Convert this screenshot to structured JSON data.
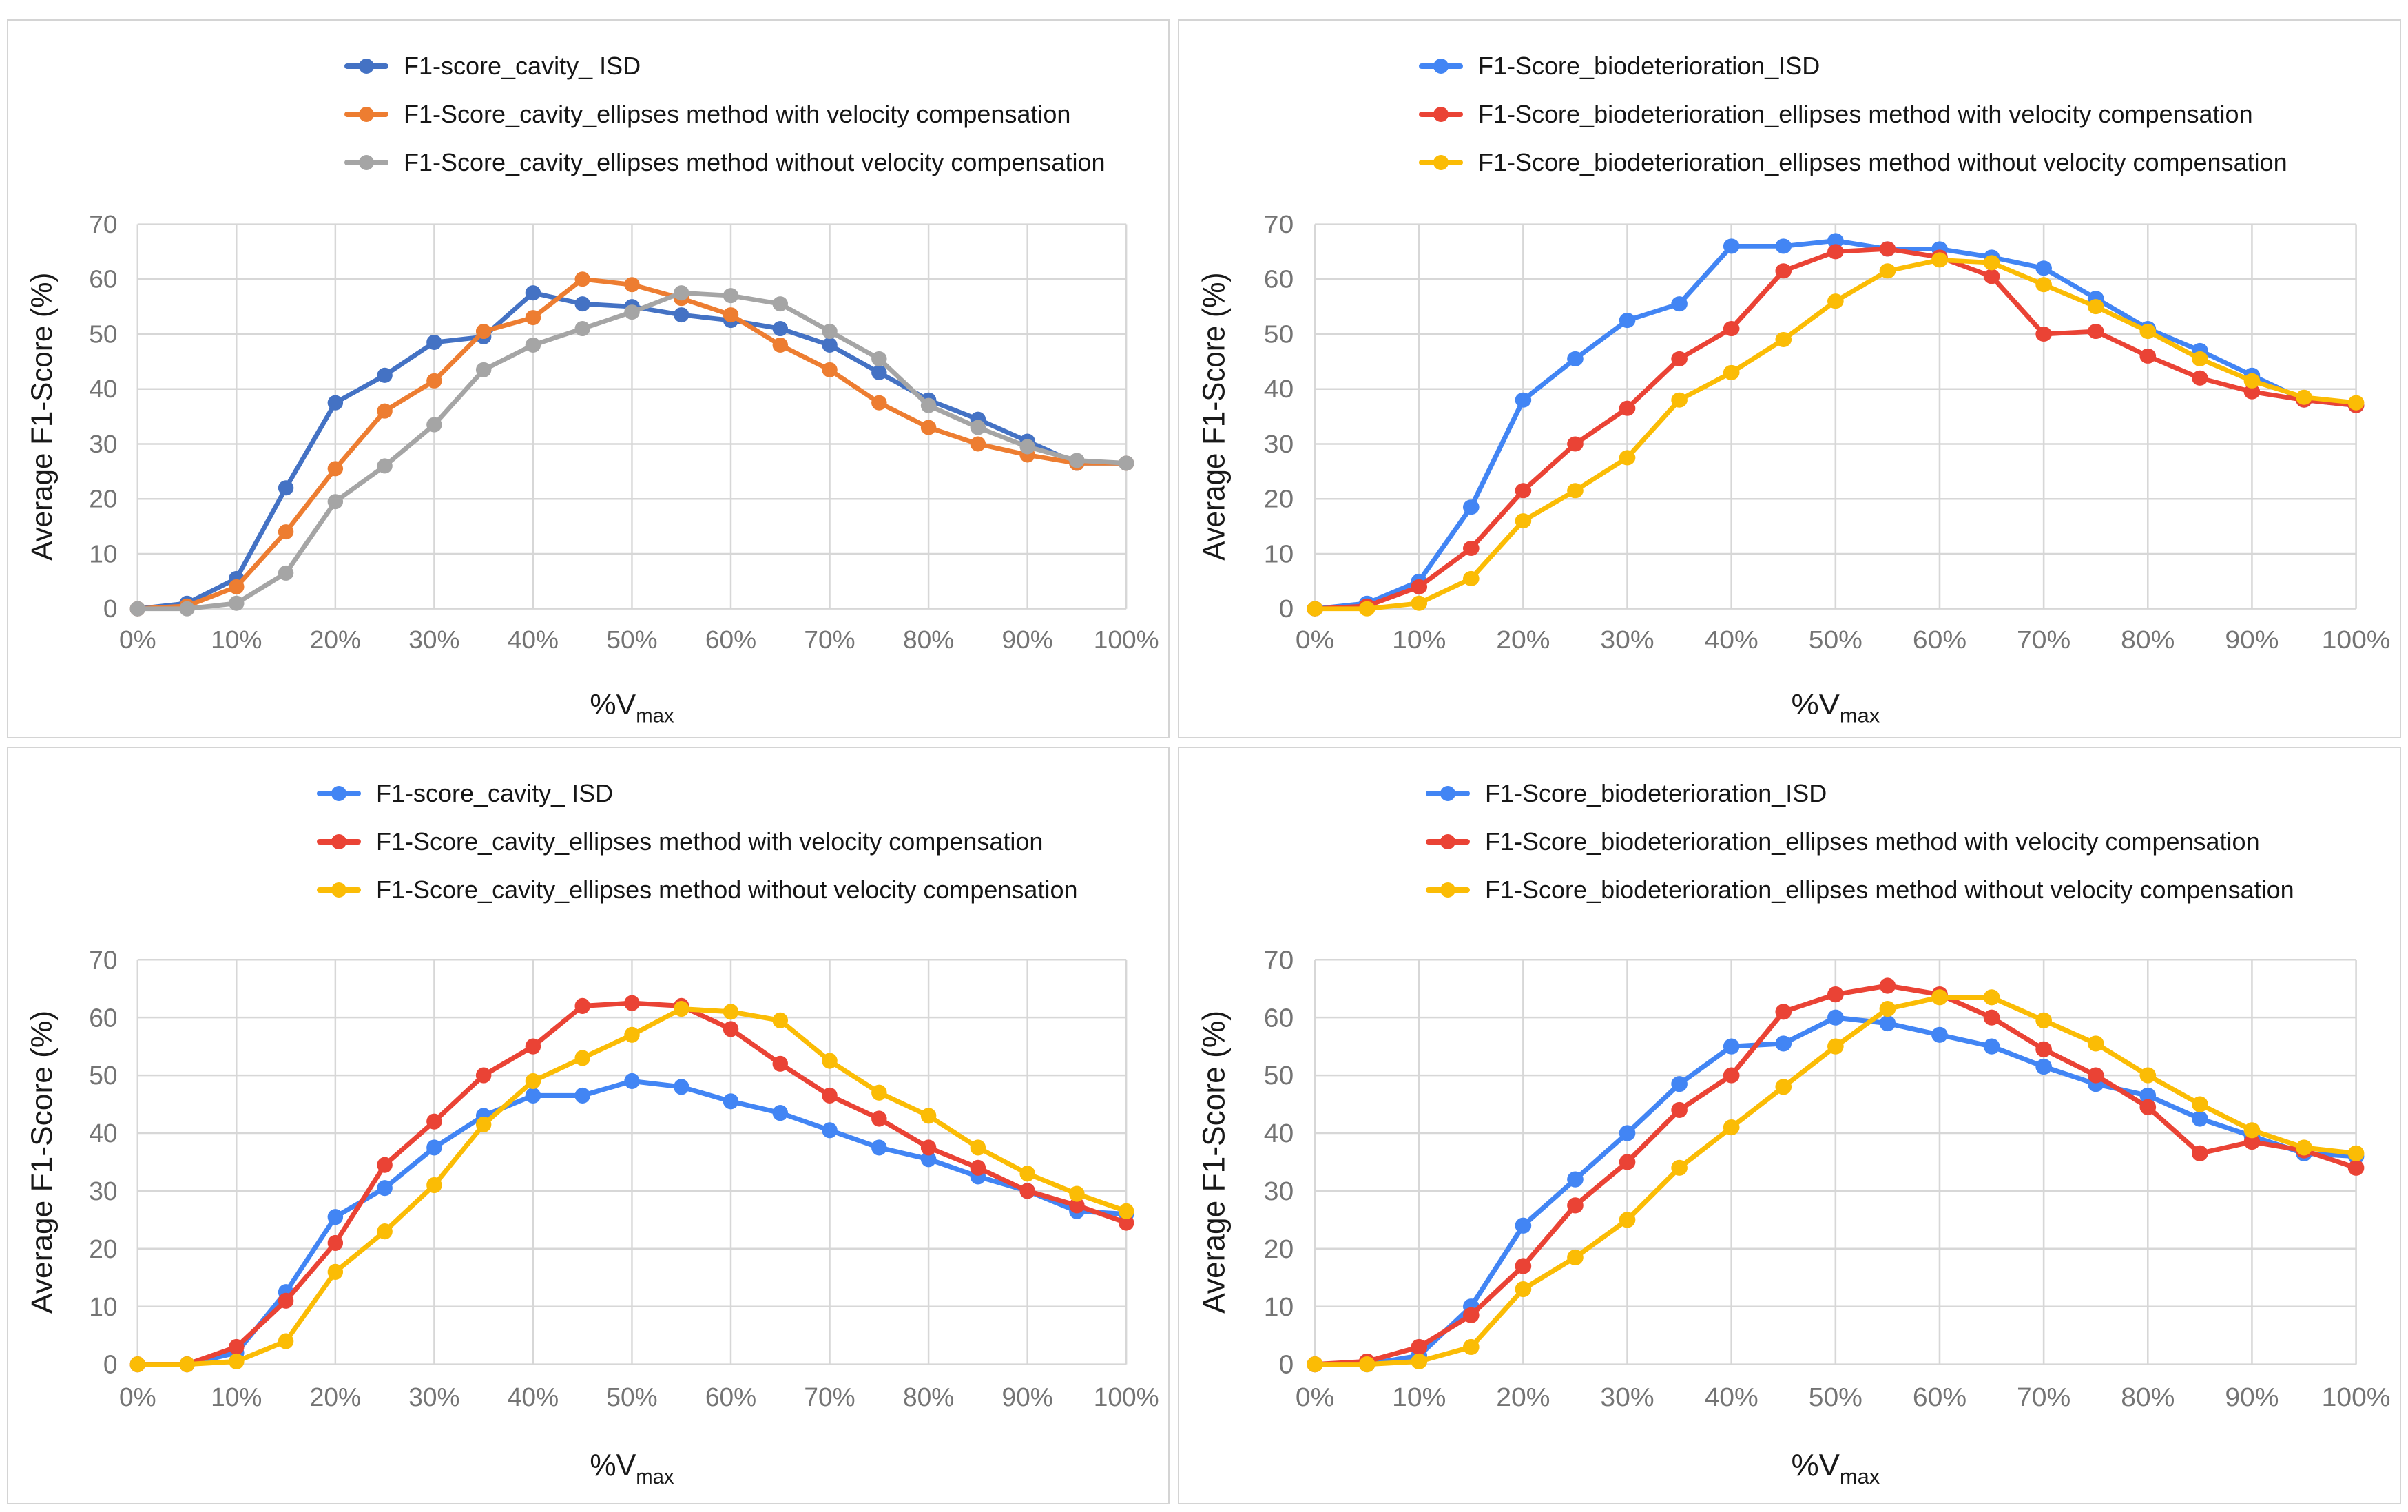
{
  "page": {
    "background": "#ffffff",
    "grid_color": "#d7d7d7",
    "tick_color": "#747474",
    "title_color": "#191919"
  },
  "axis": {
    "y_title": "Average F1-Score (%)",
    "x_title_main": "%V",
    "x_title_sub": "max",
    "x_ticks": [
      "0%",
      "10%",
      "20%",
      "30%",
      "40%",
      "50%",
      "60%",
      "70%",
      "80%",
      "90%",
      "100%"
    ],
    "y_ticks": [
      "0",
      "10",
      "20",
      "30",
      "40",
      "50",
      "60",
      "70"
    ]
  },
  "chart_data": [
    {
      "type": "line",
      "position": "top-left",
      "title": "",
      "xlabel": "%Vmax",
      "ylabel": "Average F1-Score (%)",
      "ylim": [
        0,
        70
      ],
      "grid": true,
      "legend_position": "top",
      "x_percent": [
        0,
        5,
        10,
        15,
        20,
        25,
        30,
        35,
        40,
        45,
        50,
        55,
        60,
        65,
        70,
        75,
        80,
        85,
        90,
        95,
        100
      ],
      "series": [
        {
          "name": "F1-score_cavity_ ISD",
          "color": "#4472C4",
          "values": [
            0,
            1,
            5.5,
            22,
            37.5,
            42.5,
            48.5,
            49.5,
            57.5,
            55.5,
            55,
            53.5,
            52.5,
            51,
            48,
            43,
            38,
            34.5,
            30.5,
            26.5,
            26.5
          ]
        },
        {
          "name": "F1-Score_cavity_ellipses method with velocity compensation",
          "color": "#ED7D31",
          "values": [
            0,
            0.5,
            4,
            14,
            25.5,
            36,
            41.5,
            50.5,
            53,
            60,
            59,
            56.5,
            53.5,
            48,
            43.5,
            37.5,
            33,
            30,
            28,
            26.5,
            26.5
          ]
        },
        {
          "name": "F1-Score_cavity_ellipses method without velocity compensation",
          "color": "#A5A5A5",
          "values": [
            0,
            0,
            1,
            6.5,
            19.5,
            26,
            33.5,
            43.5,
            48,
            51,
            54,
            57.5,
            57,
            55.5,
            50.5,
            45.5,
            37,
            33,
            29.5,
            27,
            26.5
          ]
        }
      ]
    },
    {
      "type": "line",
      "position": "top-right",
      "title": "",
      "xlabel": "%Vmax",
      "ylabel": "Average F1-Score (%)",
      "ylim": [
        0,
        70
      ],
      "grid": true,
      "legend_position": "top",
      "x_percent": [
        0,
        5,
        10,
        15,
        20,
        25,
        30,
        35,
        40,
        45,
        50,
        55,
        60,
        65,
        70,
        75,
        80,
        85,
        90,
        95,
        100
      ],
      "series": [
        {
          "name": "F1-Score_biodeterioration_ISD",
          "color": "#4285F4",
          "values": [
            0,
            1,
            5,
            18.5,
            38,
            45.5,
            52.5,
            55.5,
            66,
            66,
            67,
            65.5,
            65.5,
            64,
            62,
            56.5,
            51,
            47,
            42.5,
            38,
            37
          ]
        },
        {
          "name": "F1-Score_biodeterioration_ellipses method with velocity compensation",
          "color": "#EA4335",
          "values": [
            0,
            0.5,
            4,
            11,
            21.5,
            30,
            36.5,
            45.5,
            51,
            61.5,
            65,
            65.5,
            64,
            60.5,
            50,
            50.5,
            46,
            42,
            39.5,
            38,
            37
          ]
        },
        {
          "name": "F1-Score_biodeterioration_ellipses method without velocity compensation",
          "color": "#FBBC05",
          "values": [
            0,
            0,
            1,
            5.5,
            16,
            21.5,
            27.5,
            38,
            43,
            49,
            56,
            61.5,
            63.5,
            63,
            59,
            55,
            50.5,
            45.5,
            41.5,
            38.5,
            37.5
          ]
        }
      ]
    },
    {
      "type": "line",
      "position": "bottom-left",
      "title": "",
      "xlabel": "%Vmax",
      "ylabel": "Average F1-Score (%)",
      "ylim": [
        0,
        70
      ],
      "grid": true,
      "legend_position": "top",
      "x_percent": [
        0,
        5,
        10,
        15,
        20,
        25,
        30,
        35,
        40,
        45,
        50,
        55,
        60,
        65,
        70,
        75,
        80,
        85,
        90,
        95,
        100
      ],
      "series": [
        {
          "name": "F1-score_cavity_ ISD",
          "color": "#4285F4",
          "values": [
            0,
            0,
            2,
            12.5,
            25.5,
            30.5,
            37.5,
            43,
            46.5,
            46.5,
            49,
            48,
            45.5,
            43.5,
            40.5,
            37.5,
            35.5,
            32.5,
            30,
            26.5,
            26
          ]
        },
        {
          "name": "F1-Score_cavity_ellipses method with velocity compensation",
          "color": "#EA4335",
          "values": [
            0,
            0,
            3,
            11,
            21,
            34.5,
            42,
            50,
            55,
            62,
            62.5,
            62,
            58,
            52,
            46.5,
            42.5,
            37.5,
            34,
            30,
            27.5,
            24.5
          ]
        },
        {
          "name": "F1-Score_cavity_ellipses method without velocity compensation",
          "color": "#FBBC05",
          "values": [
            0,
            0,
            0.5,
            4,
            16,
            23,
            31,
            41.5,
            49,
            53,
            57,
            61.5,
            61,
            59.5,
            52.5,
            47,
            43,
            37.5,
            33,
            29.5,
            26.5
          ]
        }
      ]
    },
    {
      "type": "line",
      "position": "bottom-right",
      "title": "",
      "xlabel": "%Vmax",
      "ylabel": "Average F1-Score (%)",
      "ylim": [
        0,
        70
      ],
      "grid": true,
      "legend_position": "top",
      "x_percent": [
        0,
        5,
        10,
        15,
        20,
        25,
        30,
        35,
        40,
        45,
        50,
        55,
        60,
        65,
        70,
        75,
        80,
        85,
        90,
        95,
        100
      ],
      "series": [
        {
          "name": "F1-Score_biodeterioration_ISD",
          "color": "#4285F4",
          "values": [
            0,
            0,
            1.5,
            10,
            24,
            32,
            40,
            48.5,
            55,
            55.5,
            60,
            59,
            57,
            55,
            51.5,
            48.5,
            46.5,
            42.5,
            39.5,
            36.5,
            36
          ]
        },
        {
          "name": "F1-Score_biodeterioration_ellipses method with velocity compensation",
          "color": "#EA4335",
          "values": [
            0,
            0.5,
            3,
            8.5,
            17,
            27.5,
            35,
            44,
            50,
            61,
            64,
            65.5,
            64,
            60,
            54.5,
            50,
            44.5,
            36.5,
            38.5,
            37,
            34
          ]
        },
        {
          "name": "F1-Score_biodeterioration_ellipses method without velocity compensation",
          "color": "#FBBC05",
          "values": [
            0,
            0,
            0.5,
            3,
            13,
            18.5,
            25,
            34,
            41,
            48,
            55,
            61.5,
            63.5,
            63.5,
            59.5,
            55.5,
            50,
            45,
            40.5,
            37.5,
            36.5
          ]
        }
      ]
    }
  ]
}
